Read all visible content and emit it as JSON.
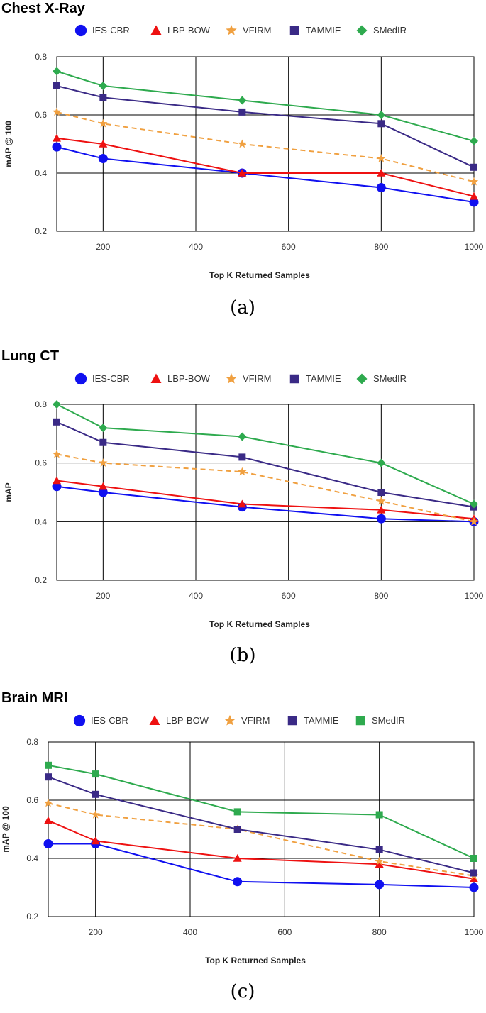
{
  "colors": {
    "IES-CBR": "#1010f0",
    "LBP-BOW": "#ee1111",
    "VFIRM": "#f0a040",
    "TAMMIE": "#3a2a86",
    "SMedIR": "#2eaa4e",
    "grid": "#000000"
  },
  "chart_data": [
    {
      "type": "line",
      "title": "Chest X-Ray",
      "caption": "(a)",
      "xlabel": "Top K Returned Samples",
      "ylabel": "mAP @ 100",
      "xlim": [
        100,
        1000
      ],
      "ylim": [
        0.2,
        0.8
      ],
      "xticks": [
        200,
        400,
        600,
        800,
        1000
      ],
      "yticks": [
        0.2,
        0.4,
        0.6,
        0.8
      ],
      "x": [
        100,
        200,
        500,
        800,
        1000
      ],
      "series": [
        {
          "name": "IES-CBR",
          "marker": "circle",
          "dashed": false,
          "values": [
            0.49,
            0.45,
            0.4,
            0.35,
            0.3
          ]
        },
        {
          "name": "LBP-BOW",
          "marker": "triangle",
          "dashed": false,
          "values": [
            0.52,
            0.5,
            0.4,
            0.4,
            0.32
          ]
        },
        {
          "name": "VFIRM",
          "marker": "star",
          "dashed": true,
          "values": [
            0.61,
            0.57,
            0.5,
            0.45,
            0.37
          ]
        },
        {
          "name": "TAMMIE",
          "marker": "square",
          "dashed": false,
          "values": [
            0.7,
            0.66,
            0.61,
            0.57,
            0.42
          ]
        },
        {
          "name": "SMedIR",
          "marker": "diamond",
          "dashed": false,
          "values": [
            0.75,
            0.7,
            0.65,
            0.6,
            0.51
          ]
        }
      ]
    },
    {
      "type": "line",
      "title": "Lung CT",
      "caption": "(b)",
      "xlabel": "Top K Returned Samples",
      "ylabel": "mAP",
      "xlim": [
        100,
        1000
      ],
      "ylim": [
        0.2,
        0.8
      ],
      "xticks": [
        200,
        400,
        600,
        800,
        1000
      ],
      "yticks": [
        0.2,
        0.4,
        0.6,
        0.8
      ],
      "x": [
        100,
        200,
        500,
        800,
        1000
      ],
      "series": [
        {
          "name": "IES-CBR",
          "marker": "circle",
          "dashed": false,
          "values": [
            0.52,
            0.5,
            0.45,
            0.41,
            0.4
          ]
        },
        {
          "name": "LBP-BOW",
          "marker": "triangle",
          "dashed": false,
          "values": [
            0.54,
            0.52,
            0.46,
            0.44,
            0.41
          ]
        },
        {
          "name": "VFIRM",
          "marker": "star",
          "dashed": true,
          "values": [
            0.63,
            0.6,
            0.57,
            0.47,
            0.4
          ]
        },
        {
          "name": "TAMMIE",
          "marker": "square",
          "dashed": false,
          "values": [
            0.74,
            0.67,
            0.62,
            0.5,
            0.45
          ]
        },
        {
          "name": "SMedIR",
          "marker": "diamond",
          "dashed": false,
          "values": [
            0.8,
            0.72,
            0.69,
            0.6,
            0.46
          ]
        }
      ]
    },
    {
      "type": "line",
      "title": "Brain MRI",
      "caption": "(c)",
      "xlabel": "Top K Returned Samples",
      "ylabel": "mAP @ 100",
      "xlim": [
        100,
        1000
      ],
      "ylim": [
        0.2,
        0.8
      ],
      "xticks": [
        200,
        400,
        600,
        800,
        1000
      ],
      "yticks": [
        0.2,
        0.4,
        0.6,
        0.8
      ],
      "x": [
        100,
        200,
        500,
        800,
        1000
      ],
      "series": [
        {
          "name": "IES-CBR",
          "marker": "circle",
          "dashed": false,
          "values": [
            0.45,
            0.45,
            0.32,
            0.31,
            0.3
          ]
        },
        {
          "name": "LBP-BOW",
          "marker": "triangle",
          "dashed": false,
          "values": [
            0.53,
            0.46,
            0.4,
            0.38,
            0.33
          ]
        },
        {
          "name": "VFIRM",
          "marker": "star",
          "dashed": true,
          "values": [
            0.59,
            0.55,
            0.5,
            0.39,
            0.34
          ]
        },
        {
          "name": "TAMMIE",
          "marker": "square",
          "dashed": false,
          "values": [
            0.68,
            0.62,
            0.5,
            0.43,
            0.35
          ]
        },
        {
          "name": "SMedIR",
          "marker": "square",
          "dashed": false,
          "values": [
            0.72,
            0.69,
            0.56,
            0.55,
            0.4
          ]
        }
      ]
    }
  ]
}
